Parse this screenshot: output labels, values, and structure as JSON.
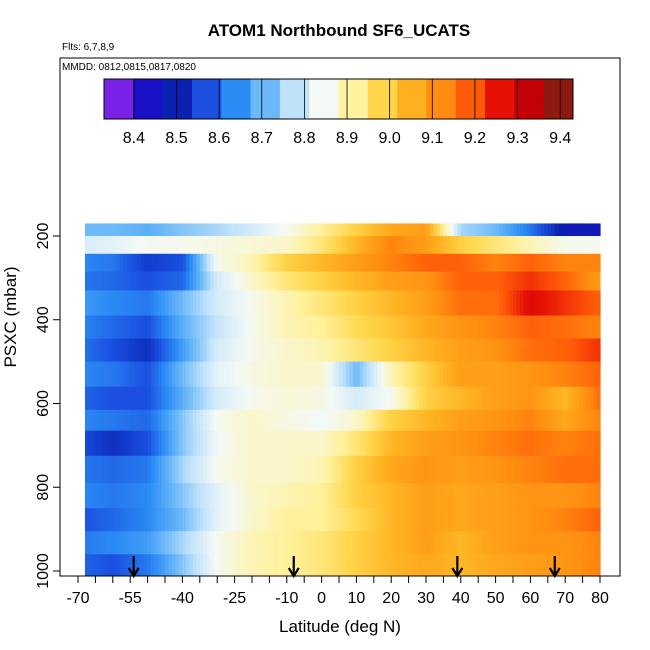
{
  "chart_data": {
    "type": "heatmap",
    "title": "ATOM1 Northbound SF6_UCATS",
    "annotations": {
      "flights": "Flts: 6,7,8,9",
      "dates": "MMDD: 0812,0815,0817,0820"
    },
    "xlabel": "Latitude (deg N)",
    "ylabel": "PSXC (mbar)",
    "xlim": [
      -70,
      82
    ],
    "ylim": [
      1020,
      100
    ],
    "x_ticks": [
      "-70",
      "-55",
      "-40",
      "-25",
      "-10",
      "0",
      "10",
      "20",
      "30",
      "40",
      "50",
      "60",
      "70",
      "80"
    ],
    "x_tick_values": [
      -70,
      -55,
      -40,
      -25,
      -10,
      0,
      10,
      20,
      30,
      40,
      50,
      60,
      70,
      80
    ],
    "x_minor_ticks": [
      -65,
      -60,
      -50,
      -45,
      -35,
      -30,
      -20,
      -15,
      -5,
      5,
      15,
      25,
      35,
      45,
      55,
      65,
      75
    ],
    "y_ticks": [
      "200",
      "400",
      "600",
      "800",
      "1000"
    ],
    "y_tick_values": [
      200,
      400,
      600,
      800,
      1000
    ],
    "colorbar": {
      "ticks": [
        "8.4",
        "8.5",
        "8.6",
        "8.7",
        "8.8",
        "8.9",
        "9.0",
        "9.1",
        "9.2",
        "9.3",
        "9.4"
      ],
      "tick_values": [
        8.4,
        8.5,
        8.6,
        8.7,
        8.8,
        8.9,
        9.0,
        9.1,
        9.2,
        9.3,
        9.4
      ],
      "range": [
        8.33,
        9.43
      ],
      "colors": [
        "#7b22e8",
        "#1a10c8",
        "#0a20b0",
        "#1a4fe0",
        "#2b8cf5",
        "#6ab8f8",
        "#bfe2fb",
        "#f4f9f6",
        "#fff2a0",
        "#ffd64a",
        "#ffb020",
        "#ff8c10",
        "#ff5a08",
        "#e61005",
        "#c30005",
        "#8c1a10"
      ]
    },
    "pressure_levels": [
      185,
      215,
      270,
      300,
      360,
      420,
      470,
      530,
      590,
      640,
      690,
      760,
      820,
      880,
      930,
      990
    ],
    "latitudes": [
      -70,
      -60,
      -50,
      -40,
      -30,
      -20,
      -10,
      0,
      10,
      20,
      30,
      40,
      50,
      60,
      70,
      80
    ],
    "values": [
      [
        8.7,
        8.7,
        8.68,
        8.72,
        8.75,
        8.8,
        8.85,
        8.92,
        9.0,
        9.08,
        9.1,
        8.75,
        8.7,
        8.6,
        8.45,
        8.45
      ],
      [
        8.8,
        8.82,
        8.85,
        8.85,
        8.86,
        8.87,
        8.88,
        8.95,
        9.05,
        9.15,
        9.1,
        9.0,
        8.95,
        8.9,
        8.85,
        8.85
      ],
      [
        8.62,
        8.6,
        8.52,
        8.55,
        8.85,
        8.9,
        9.0,
        9.05,
        9.1,
        9.15,
        9.2,
        9.2,
        9.15,
        9.2,
        9.15,
        9.15
      ],
      [
        8.6,
        8.58,
        8.55,
        8.58,
        8.8,
        8.88,
        8.95,
        9.0,
        9.05,
        9.1,
        9.12,
        9.2,
        9.2,
        9.25,
        9.2,
        9.1
      ],
      [
        8.65,
        8.62,
        8.6,
        8.7,
        8.8,
        8.85,
        8.9,
        8.95,
        9.0,
        9.05,
        9.1,
        9.18,
        9.18,
        9.3,
        9.25,
        9.2
      ],
      [
        8.62,
        8.58,
        8.55,
        8.68,
        8.78,
        8.85,
        8.9,
        8.92,
        8.98,
        9.02,
        9.08,
        9.12,
        9.15,
        9.2,
        9.18,
        9.15
      ],
      [
        8.6,
        8.55,
        8.5,
        8.65,
        8.8,
        8.85,
        8.88,
        8.9,
        8.95,
        9.0,
        9.05,
        9.1,
        9.12,
        9.18,
        9.2,
        9.25
      ],
      [
        8.62,
        8.6,
        8.55,
        8.7,
        8.82,
        8.86,
        8.88,
        8.88,
        8.7,
        8.9,
        9.0,
        9.1,
        9.1,
        9.12,
        9.15,
        9.2
      ],
      [
        8.58,
        8.55,
        8.55,
        8.68,
        8.8,
        8.85,
        8.87,
        8.86,
        8.8,
        8.85,
        9.0,
        9.05,
        9.1,
        9.12,
        9.05,
        9.18
      ],
      [
        8.62,
        8.6,
        8.58,
        8.72,
        8.85,
        8.88,
        8.86,
        8.84,
        8.88,
        9.0,
        9.05,
        9.1,
        9.12,
        9.15,
        9.08,
        9.15
      ],
      [
        8.55,
        8.5,
        8.55,
        8.72,
        8.84,
        8.88,
        8.88,
        8.88,
        8.95,
        9.05,
        9.1,
        9.12,
        9.15,
        9.18,
        9.15,
        9.18
      ],
      [
        8.6,
        8.58,
        8.6,
        8.75,
        8.85,
        8.88,
        8.88,
        8.9,
        9.0,
        9.08,
        9.12,
        9.1,
        9.12,
        9.15,
        9.18,
        9.18
      ],
      [
        8.62,
        8.6,
        8.62,
        8.72,
        8.82,
        8.88,
        8.9,
        8.92,
        9.0,
        9.05,
        9.1,
        9.08,
        9.1,
        9.12,
        9.12,
        9.15
      ],
      [
        8.55,
        8.58,
        8.62,
        8.7,
        8.82,
        8.88,
        8.92,
        8.92,
        8.98,
        9.05,
        9.1,
        9.08,
        9.1,
        9.12,
        9.15,
        9.2
      ],
      [
        8.6,
        8.62,
        8.65,
        8.75,
        8.85,
        8.9,
        8.92,
        8.95,
        9.0,
        9.05,
        9.1,
        9.05,
        9.1,
        9.12,
        9.12,
        9.15
      ],
      [
        8.58,
        8.55,
        8.6,
        8.72,
        8.85,
        8.9,
        8.92,
        8.95,
        9.0,
        9.05,
        9.08,
        9.05,
        9.08,
        9.1,
        9.12,
        9.15
      ]
    ],
    "flight_markers_lat": [
      -54,
      -8,
      39,
      67
    ]
  }
}
